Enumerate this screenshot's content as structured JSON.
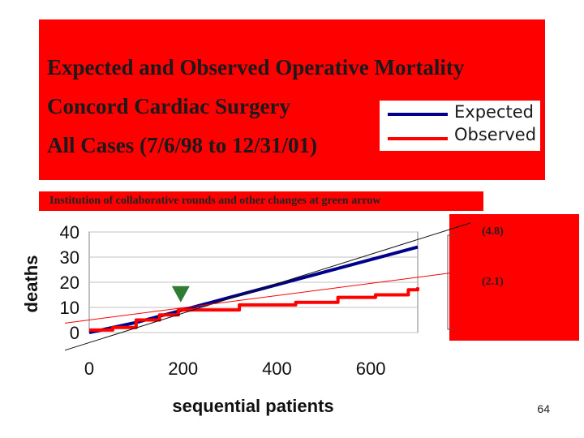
{
  "title": {
    "line1": "Expected and Observed Operative Mortality",
    "line2": "Concord Cardiac Surgery",
    "line3": "All Cases (7/6/98 to 12/31/01)"
  },
  "banner_text": "Institution of collaborative rounds and other changes at green arrow",
  "page_number": "64",
  "colors": {
    "expected": "#00008b",
    "observed": "#ff0000",
    "arrow": "#2e7d32",
    "panel": "#ff0000"
  },
  "chart_data": {
    "type": "line",
    "xlabel": "sequential patients",
    "ylabel": "deaths",
    "xlim": [
      0,
      700
    ],
    "ylim": [
      0,
      40
    ],
    "x_ticks": [
      "0",
      "200",
      "400",
      "600"
    ],
    "y_ticks": [
      "0",
      "10",
      "20",
      "30",
      "40"
    ],
    "legend": {
      "position": "top-right",
      "entries": [
        "Expected",
        "Observed"
      ]
    },
    "series": [
      {
        "name": "Expected",
        "x": [
          0,
          100,
          200,
          300,
          400,
          500,
          600,
          700
        ],
        "y": [
          0,
          4,
          9,
          14,
          19,
          24,
          29,
          34
        ]
      },
      {
        "name": "Observed",
        "x": [
          0,
          50,
          100,
          150,
          190,
          210,
          320,
          440,
          530,
          610,
          680,
          700
        ],
        "y": [
          1,
          2,
          5,
          7,
          9,
          9,
          11,
          12,
          14,
          15,
          17,
          18
        ]
      }
    ],
    "trend_lines": [
      {
        "label": "(4.8)",
        "x": [
          0,
          700
        ],
        "y": [
          -4,
          37
        ]
      },
      {
        "label": "(2.1)",
        "x": [
          0,
          700
        ],
        "y": [
          5,
          22
        ]
      }
    ],
    "annotation": {
      "type": "arrow",
      "x": 195,
      "y": 12,
      "meaning": "green arrow"
    }
  }
}
